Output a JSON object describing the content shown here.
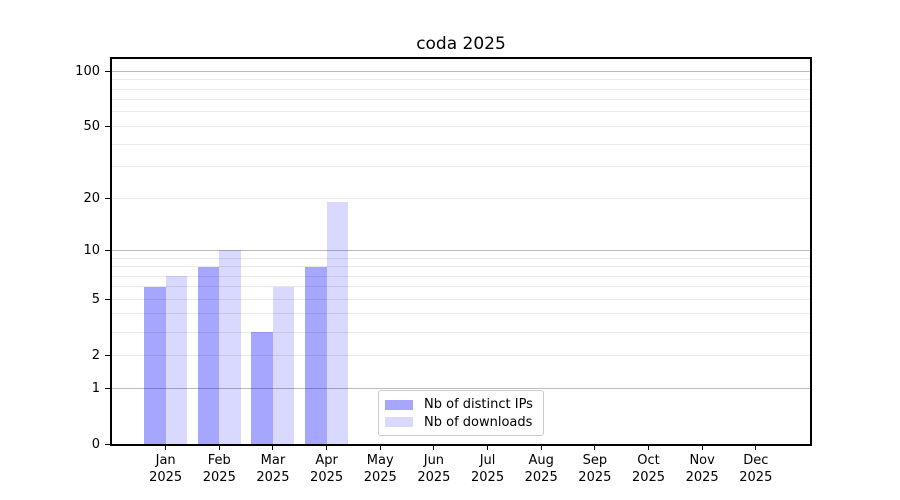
{
  "title": "coda 2025",
  "chart_data": {
    "type": "bar",
    "title": "coda 2025",
    "y_scale": "log(1+x)",
    "grid": "on",
    "legend_position": "lower center",
    "categories": [
      "Jan",
      "Feb",
      "Mar",
      "Apr",
      "May",
      "Jun",
      "Jul",
      "Aug",
      "Sep",
      "Oct",
      "Nov",
      "Dec"
    ],
    "tick_year": "2025",
    "series": [
      {
        "name": "Nb of distinct IPs",
        "color": "rgba(0,0,255,0.35)",
        "color_hex": "#a6a6ff",
        "values": [
          6,
          8,
          3,
          8,
          0,
          0,
          0,
          0,
          0,
          0,
          0,
          0
        ]
      },
      {
        "name": "Nb of downloads",
        "color": "rgba(0,0,255,0.15)",
        "color_hex": "#d9d9ff",
        "values": [
          7,
          10,
          6,
          19,
          0,
          0,
          0,
          0,
          0,
          0,
          0,
          0
        ]
      }
    ],
    "y_ticks": [
      100,
      50,
      20,
      10,
      5,
      2,
      1,
      0
    ],
    "y_gridlines_major": [
      100,
      10,
      1
    ],
    "y_gridlines_minor": [
      90,
      80,
      70,
      60,
      50,
      40,
      30,
      20,
      9,
      8,
      7,
      6,
      5,
      4,
      3,
      2
    ],
    "ylim": [
      0,
      117
    ],
    "colors": {
      "major_grid": "#bbbbbb",
      "minor_grid": "#e8e8e8",
      "spine": "#000000",
      "text": "#000000"
    }
  }
}
